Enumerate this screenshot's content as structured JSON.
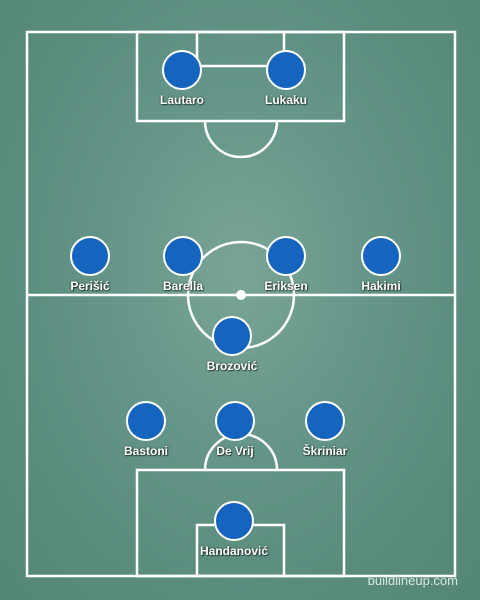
{
  "colors": {
    "pitch": "#5e8f80",
    "lines": "#ffffff",
    "player_dot": "#1565c0"
  },
  "players": [
    {
      "name": "Lautaro"
    },
    {
      "name": "Lukaku"
    },
    {
      "name": "Perišić"
    },
    {
      "name": "Barella"
    },
    {
      "name": "Eriksen"
    },
    {
      "name": "Hakimi"
    },
    {
      "name": "Brozović"
    },
    {
      "name": "Bastoni"
    },
    {
      "name": "De Vrij"
    },
    {
      "name": "Škriniar"
    },
    {
      "name": "Handanović"
    }
  ],
  "watermark": "buildlineup.com"
}
